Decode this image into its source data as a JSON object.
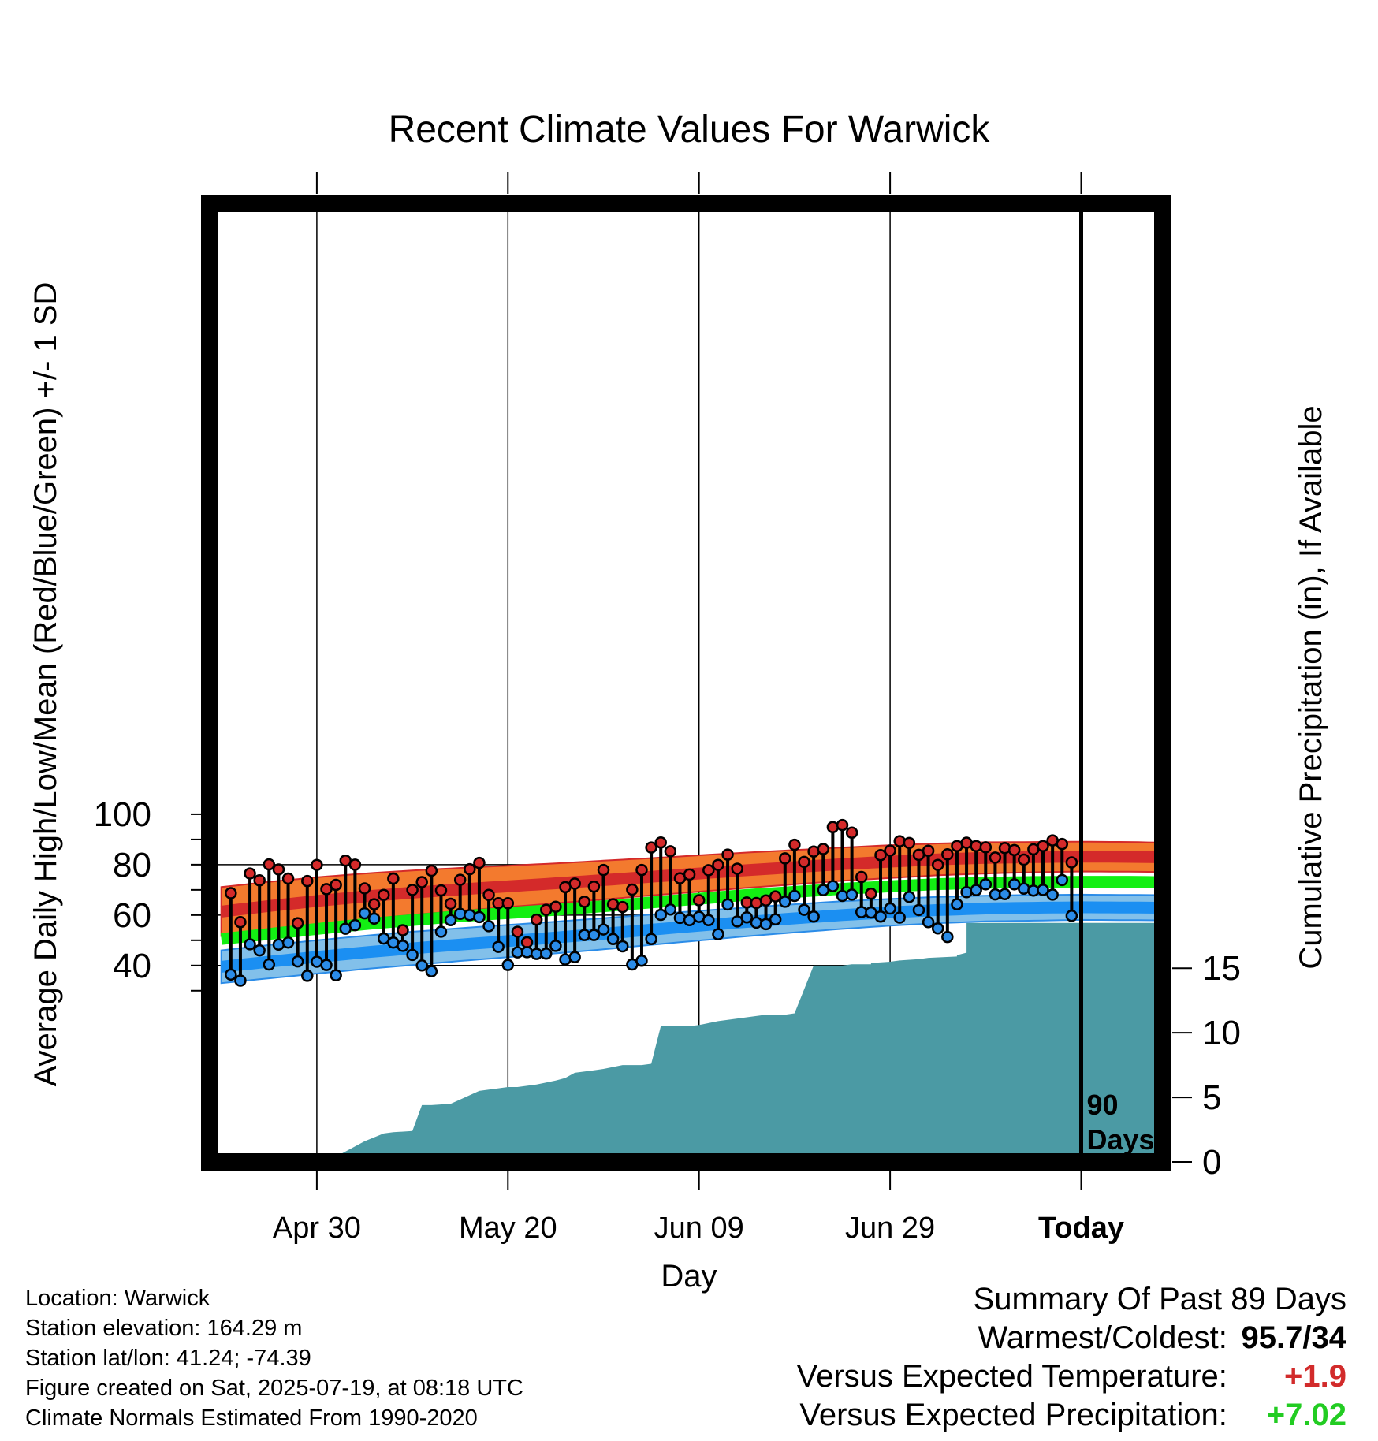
{
  "chart_data": {
    "type": "line",
    "title": "Recent Climate Values For Warwick",
    "xlabel": "Day",
    "ylabel": "Average Daily High/Low/Mean (Red/Blue/Green) +/- 1 SD",
    "y2label": "Cumulative Precipitation (in), If Available",
    "ylim": [
      25,
      100
    ],
    "y2lim": [
      0,
      55.7
    ],
    "x_tick_labels": [
      "Apr 30",
      "May 20",
      "Jun 09",
      "Jun 29",
      "Today"
    ],
    "y_ticks": [
      "40",
      "60",
      "80",
      "100"
    ],
    "y2_ticks": [
      "0",
      "5",
      "10",
      "15"
    ],
    "window_label": "90\nDays",
    "grid": true,
    "colors": {
      "high_band": "#f37a2e",
      "high_line": "#d42a2a",
      "low_band": "#82c0ea",
      "low_line": "#1b8ff2",
      "mean_line": "#13ef13",
      "precip": "#4b9aa4",
      "high_point": "#d42a2a",
      "low_point": "#2b8ce8"
    },
    "normal_days": [
      -90,
      -85,
      -80,
      -75,
      -70,
      -65,
      -60,
      -55,
      -50,
      -45,
      -40,
      -35,
      -30,
      -25,
      -20,
      -15,
      -10,
      -5,
      0,
      5,
      9
    ],
    "normal_high": [
      61.4,
      63.6,
      65.6,
      67.4,
      68.9,
      70.2,
      71.4,
      72.6,
      73.9,
      75.2,
      76.5,
      77.8,
      79.0,
      80.2,
      81.2,
      82.1,
      82.7,
      83.0,
      83.2,
      83.1,
      82.9
    ],
    "high_sd": [
      9.7,
      9.6,
      9.4,
      9.1,
      8.8,
      8.5,
      8.2,
      7.9,
      7.7,
      7.4,
      7.2,
      7.0,
      6.8,
      6.6,
      6.5,
      6.3,
      6.2,
      6.0,
      5.9,
      5.9,
      5.8
    ],
    "normal_mean": [
      50.5,
      52.5,
      54.5,
      56.4,
      58.0,
      59.6,
      60.8,
      62.1,
      63.5,
      65.0,
      66.5,
      68.0,
      69.2,
      70.4,
      71.4,
      72.3,
      72.8,
      73.1,
      73.2,
      73.2,
      73.0
    ],
    "normal_low": [
      39.5,
      41.5,
      43.4,
      45.2,
      46.8,
      48.3,
      49.7,
      51.1,
      52.6,
      54.2,
      55.8,
      57.3,
      58.7,
      60.0,
      61.1,
      62.0,
      62.6,
      62.9,
      63.1,
      63.0,
      62.9
    ],
    "low_sd": [
      6.5,
      6.6,
      6.6,
      6.6,
      6.6,
      6.5,
      6.4,
      6.3,
      6.2,
      6.0,
      5.9,
      5.7,
      5.6,
      5.5,
      5.3,
      5.2,
      5.1,
      5.1,
      5.0,
      5.0,
      5.0
    ],
    "obs_days": [
      -89,
      -88,
      -87,
      -86,
      -85,
      -84,
      -83,
      -82,
      -81,
      -80,
      -79,
      -78,
      -77,
      -76,
      -75,
      -74,
      -73,
      -72,
      -71,
      -70,
      -69,
      -68,
      -67,
      -66,
      -65,
      -64,
      -63,
      -62,
      -61,
      -60,
      -59,
      -58,
      -57,
      -56,
      -55,
      -54,
      -53,
      -52,
      -51,
      -50,
      -49,
      -48,
      -47,
      -46,
      -45,
      -44,
      -43,
      -42,
      -41,
      -40,
      -39,
      -38,
      -37,
      -36,
      -35,
      -34,
      -33,
      -32,
      -31,
      -30,
      -29,
      -28,
      -27,
      -26,
      -25,
      -24,
      -23,
      -22,
      -21,
      -20,
      -19,
      -18,
      -17,
      -16,
      -15,
      -14,
      -13,
      -12,
      -11,
      -10,
      -9,
      -8,
      -7,
      -6,
      -5,
      -4,
      -3,
      -2,
      -1
    ],
    "obs_high": [
      68.7,
      57.2,
      76.5,
      73.8,
      80.1,
      78.1,
      74.5,
      56.8,
      73.5,
      79.9,
      70.3,
      72.0,
      81.6,
      80.0,
      70.6,
      64.3,
      68.0,
      74.5,
      54.0,
      70.0,
      73.1,
      77.6,
      69.8,
      64.5,
      74.0,
      78.2,
      80.7,
      68.0,
      64.7,
      64.7,
      53.4,
      49.2,
      58.2,
      62.1,
      63.3,
      71.1,
      72.5,
      65.3,
      71.3,
      77.9,
      64.3,
      63.2,
      70.1,
      77.9,
      86.8,
      88.8,
      85.3,
      74.6,
      76.1,
      65.9,
      77.8,
      79.9,
      84.0,
      78.4,
      65.0,
      64.8,
      65.8,
      67.4,
      82.5,
      87.9,
      81.1,
      85.2,
      86.2,
      94.9,
      95.7,
      92.7,
      75.1,
      68.5,
      83.8,
      85.6,
      89.3,
      88.6,
      83.9,
      85.5,
      79.9,
      84.1,
      87.4,
      88.7,
      87.4,
      86.9,
      82.8,
      86.6,
      85.8,
      82.0,
      86.1,
      87.4,
      89.6,
      88.2,
      80.9
    ],
    "obs_low": [
      36.4,
      34.0,
      48.4,
      46.0,
      40.4,
      48.3,
      49.1,
      41.6,
      35.9,
      41.5,
      40.2,
      36.1,
      54.6,
      56.0,
      60.7,
      58.6,
      50.7,
      49.1,
      47.8,
      44.2,
      40.0,
      37.7,
      53.4,
      58.0,
      60.5,
      60.0,
      59.2,
      55.6,
      47.4,
      40.2,
      45.2,
      45.3,
      44.6,
      44.7,
      47.8,
      42.4,
      43.3,
      52.1,
      52.1,
      54.3,
      50.5,
      47.6,
      40.4,
      41.9,
      50.5,
      60.1,
      62.2,
      58.9,
      58.0,
      59.3,
      58.0,
      52.4,
      64.2,
      57.5,
      59.1,
      57.0,
      56.4,
      58.3,
      65.3,
      67.6,
      62.1,
      59.4,
      69.9,
      71.5,
      67.6,
      68.1,
      61.2,
      61.0,
      59.4,
      62.6,
      59.0,
      67.2,
      62.0,
      57.2,
      54.7,
      51.3,
      64.3,
      69.1,
      69.9,
      72.2,
      68.2,
      68.3,
      72.2,
      70.5,
      69.7,
      70.0,
      68.1,
      73.9,
      59.7
    ],
    "precip_days": [
      -90,
      -84,
      -84,
      -78,
      -76,
      -75,
      -73,
      -72,
      -70,
      -69,
      -68,
      -66,
      -66,
      -63,
      -62,
      -60,
      -59,
      -57,
      -57,
      -55,
      -54,
      -53,
      -51,
      -50,
      -50,
      -48,
      -46,
      -45,
      -44,
      -43,
      -41,
      -40,
      -38,
      -37,
      -35,
      -33,
      -32,
      -32,
      -31,
      -30,
      -28,
      -27,
      -25,
      -24,
      -22,
      -22,
      -20,
      -19,
      -17,
      -16,
      -13,
      -13,
      -12,
      -12,
      9
    ],
    "precip_values": [
      0,
      0,
      0.4,
      0.4,
      1.2,
      1.6,
      2.2,
      2.3,
      2.4,
      4.4,
      4.4,
      4.5,
      4.5,
      5.5,
      5.6,
      5.8,
      5.8,
      6.0,
      6.0,
      6.3,
      6.5,
      6.9,
      7.1,
      7.2,
      7.2,
      7.5,
      7.5,
      7.6,
      10.5,
      10.5,
      10.5,
      10.6,
      10.9,
      11.0,
      11.2,
      11.4,
      11.4,
      11.4,
      11.4,
      11.5,
      15.2,
      15.2,
      15.2,
      15.3,
      15.3,
      15.4,
      15.5,
      15.6,
      15.7,
      15.8,
      15.9,
      16.0,
      16.2,
      18.5,
      18.5
    ]
  },
  "info": {
    "location": "Location: Warwick",
    "elevation": "Station elevation: 164.29 m",
    "latlon": "Station lat/lon: 41.24; -74.39",
    "created": "Figure created on Sat, 2025-07-19, at 08:18 UTC",
    "normals": "Climate Normals Estimated From 1990-2020"
  },
  "summary": {
    "title": "Summary Of Past 89 Days",
    "warm_cold_label": "Warmest/Coldest:",
    "warm_cold_value": "95.7/34",
    "temp_label": "Versus Expected Temperature:",
    "temp_value": "+1.9",
    "precip_label": "Versus Expected Precipitation:",
    "precip_value": "+7.02"
  }
}
